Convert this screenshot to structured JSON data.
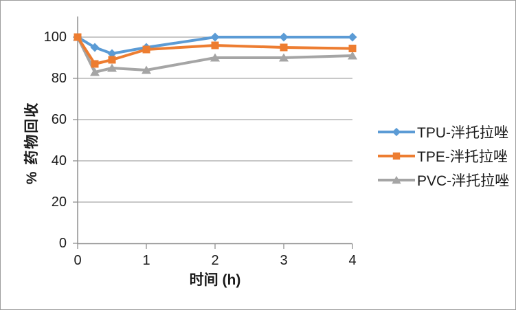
{
  "chart_data": {
    "type": "line",
    "title": "",
    "x": [
      0,
      0.25,
      0.5,
      1,
      2,
      3,
      4
    ],
    "series": [
      {
        "name": "TPU-泮托拉唑",
        "color": "#5B9BD5",
        "marker": "diamond",
        "values": [
          100,
          95,
          92,
          95,
          100,
          100,
          100
        ]
      },
      {
        "name": "TPE-泮托拉唑",
        "color": "#ED7D31",
        "marker": "square",
        "values": [
          100,
          87,
          89,
          94,
          96,
          95,
          94.5
        ]
      },
      {
        "name": "PVC-泮托拉唑",
        "color": "#A5A5A5",
        "marker": "triangle",
        "values": [
          100,
          83,
          85,
          84,
          90,
          90,
          91
        ]
      }
    ],
    "xlabel": "时间 (h)",
    "ylabel": "% 药物回收",
    "xlim": [
      0,
      4
    ],
    "ylim": [
      0,
      110
    ],
    "x_tick_values": [
      0,
      1,
      2,
      3,
      4
    ],
    "x_tick_labels": [
      "0",
      "1",
      "2",
      "3",
      "4"
    ],
    "y_tick_values": [
      0,
      20,
      40,
      60,
      80,
      100
    ],
    "y_tick_labels": [
      "0",
      "20",
      "40",
      "60",
      "80",
      "100"
    ],
    "grid": "horizontal",
    "legend_position": "right",
    "draw_order": [
      0,
      2,
      1
    ],
    "colors": {
      "grid_color": "#A8A8A8",
      "axis_color": "#8F8F8F",
      "background": "#FFFFFF",
      "text_color": "#1a1a1a"
    }
  }
}
